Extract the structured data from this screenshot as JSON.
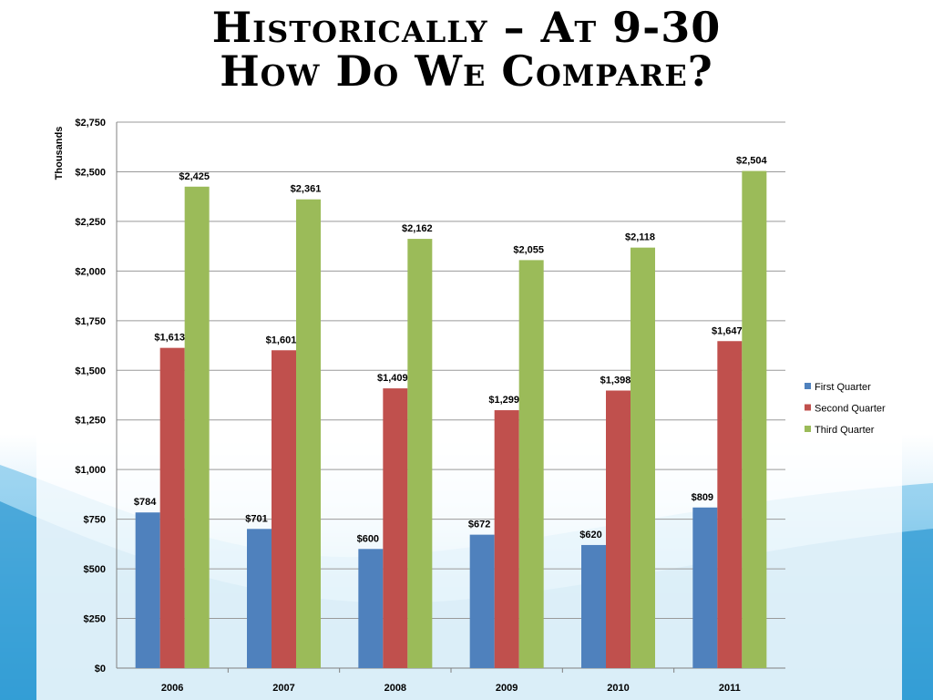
{
  "slide": {
    "title_line1": "Historically – At 9-30",
    "title_line2": "How Do We Compare?"
  },
  "chart_data": {
    "type": "bar",
    "title": "",
    "xlabel": "",
    "ylabel": "Thousands",
    "categories": [
      "2006",
      "2007",
      "2008",
      "2009",
      "2010",
      "2011"
    ],
    "series": [
      {
        "name": "First Quarter",
        "color": "#4F81BD",
        "values": [
          784,
          701,
          600,
          672,
          620,
          809
        ],
        "labels": [
          "$784",
          "$701",
          "$600",
          "$672",
          "$620",
          "$809"
        ]
      },
      {
        "name": "Second Quarter",
        "color": "#C0504D",
        "values": [
          1613,
          1601,
          1409,
          1299,
          1398,
          1647
        ],
        "labels": [
          "$1,613",
          "$1,601",
          "$1,409",
          "$1,299",
          "$1,398",
          "$1,647"
        ]
      },
      {
        "name": "Third Quarter",
        "color": "#9BBB59",
        "values": [
          2425,
          2361,
          2162,
          2055,
          2118,
          2504
        ],
        "labels": [
          "$2,425",
          "$2,361",
          "$2,162",
          "$2,055",
          "$2,118",
          "$2,504"
        ]
      }
    ],
    "ylim": [
      0,
      2750
    ],
    "yticks": [
      0,
      250,
      500,
      750,
      1000,
      1250,
      1500,
      1750,
      2000,
      2250,
      2500,
      2750
    ],
    "ytick_labels": [
      "$0",
      "$250",
      "$500",
      "$750",
      "$1,000",
      "$1,250",
      "$1,500",
      "$1,750",
      "$2,000",
      "$2,250",
      "$2,500",
      "$2,750"
    ],
    "grid": true,
    "legend_position": "right"
  }
}
